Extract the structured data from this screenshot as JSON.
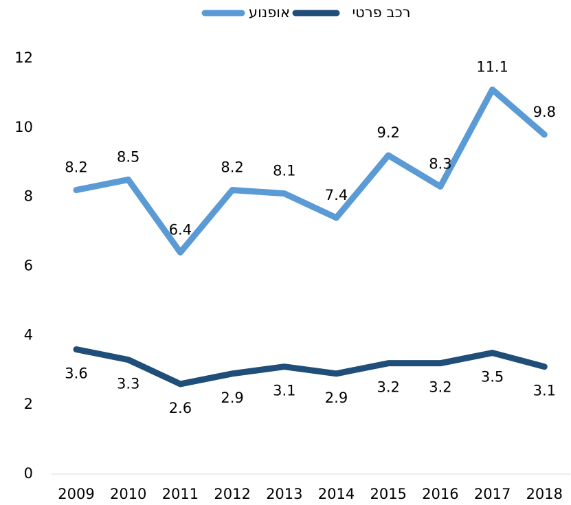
{
  "chart_data": {
    "type": "line",
    "categories": [
      "2009",
      "2010",
      "2011",
      "2012",
      "2013",
      "2014",
      "2015",
      "2016",
      "2017",
      "2018"
    ],
    "series": [
      {
        "name": "אופנוע",
        "color": "#5b9bd5",
        "values": [
          8.2,
          8.5,
          6.4,
          8.2,
          8.1,
          7.4,
          9.2,
          8.3,
          11.1,
          9.8
        ]
      },
      {
        "name": "רכב פרטי",
        "color": "#1f4e79",
        "values": [
          3.6,
          3.3,
          2.6,
          2.9,
          3.1,
          2.9,
          3.2,
          3.2,
          3.5,
          3.1
        ]
      }
    ],
    "ylim": [
      0,
      12
    ],
    "yticks": [
      0,
      2,
      4,
      6,
      8,
      10,
      12
    ],
    "grid": false
  }
}
